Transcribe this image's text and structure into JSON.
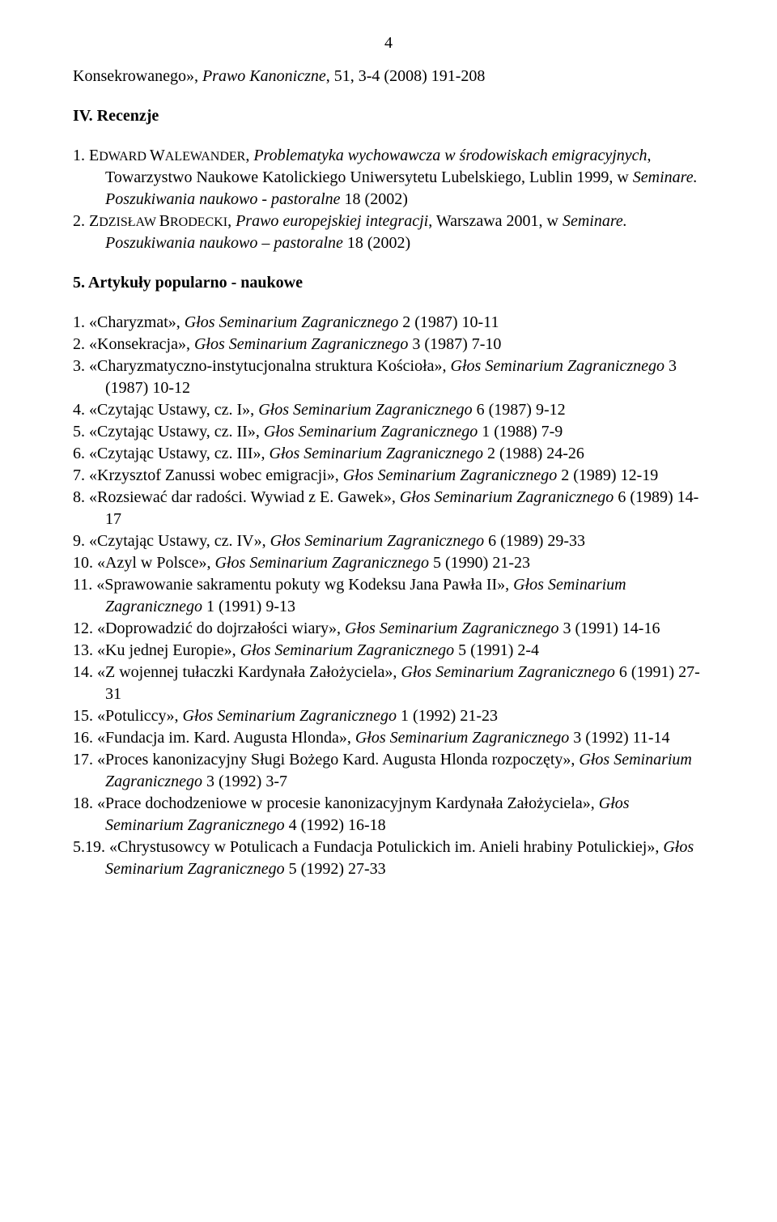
{
  "page_number": "4",
  "top_continuation": {
    "pre": "Konsekrowanego», ",
    "journal": "Prawo Kanoniczne",
    "post": ", 51, 3-4 (2008) 191-208"
  },
  "section_reviews": {
    "heading": "IV. Recenzje",
    "items": [
      {
        "num": "1. ",
        "author_a": "E",
        "author_b": "DWARD ",
        "author_c": "W",
        "author_d": "ALEWANDER",
        "mid1": ", ",
        "title1": "Problematyka wychowawcza w środowiskach emigracyjnych",
        "mid2": ", Towarzystwo Naukowe Katolickiego Uniwersytetu Lubelskiego, Lublin 1999, w ",
        "title2": "Seminare. Poszukiwania naukowo - pastoralne",
        "mid3": " 18 (2002)"
      },
      {
        "num": "2. ",
        "author_a": "Z",
        "author_b": "DZISŁAW ",
        "author_c": "B",
        "author_d": "RODECKI",
        "mid1": ", ",
        "title1": "Prawo europejskiej integracji",
        "mid2": ", Warszawa 2001, w ",
        "title2": "Seminare. Poszukiwania naukowo – pastoralne",
        "mid3": " 18 (2002)"
      }
    ]
  },
  "section_articles": {
    "heading": "5. Artykuły popularno - naukowe",
    "items": [
      {
        "num": "1. ",
        "pre": "«Charyzmat», ",
        "j": "Głos Seminarium Zagranicznego ",
        "post": " 2 (1987) 10-11"
      },
      {
        "num": "2. ",
        "pre": "«Konsekracja», ",
        "j": "Głos Seminarium Zagranicznego ",
        "post": " 3 (1987) 7-10"
      },
      {
        "num": "3. ",
        "pre": "«Charyzmatyczno-instytucjonalna struktura Kościoła», ",
        "j": "Głos Seminarium Zagranicznego ",
        "post": " 3 (1987) 10-12"
      },
      {
        "num": "4. ",
        "pre": "«Czytając Ustawy, cz. I», ",
        "j": "Głos Seminarium Zagranicznego ",
        "post": " 6 (1987) 9-12"
      },
      {
        "num": "5. ",
        "pre": "«Czytając Ustawy, cz. II», ",
        "j": "Głos Seminarium Zagranicznego",
        "post": " 1 (1988) 7-9"
      },
      {
        "num": "6. ",
        "pre": "«Czytając Ustawy, cz. III», ",
        "j": "Głos Seminarium Zagranicznego ",
        "post": " 2 (1988) 24-26"
      },
      {
        "num": "7. ",
        "pre": "«Krzysztof Zanussi wobec emigracji», ",
        "j": "Głos Seminarium Zagranicznego",
        "post": " 2 (1989) 12-19"
      },
      {
        "num": "8. ",
        "pre": "«Rozsiewać dar radości. Wywiad z E. Gawek», ",
        "j": "Głos Seminarium Zagranicznego ",
        "post": " 6 (1989) 14-17"
      },
      {
        "num": "9. ",
        "pre": "«Czytając Ustawy, cz. IV», ",
        "j": "Głos Seminarium Zagranicznego ",
        "post": " 6 (1989) 29-33"
      },
      {
        "num": "10. ",
        "pre": "«Azyl w Polsce», ",
        "j": "Głos Seminarium Zagranicznego",
        "post": " 5 (1990) 21-23"
      },
      {
        "num": "11. ",
        "pre": "«Sprawowanie sakramentu pokuty wg Kodeksu Jana Pawła II», ",
        "j": "Głos Seminarium Zagranicznego ",
        "post": " 1 (1991) 9-13"
      },
      {
        "num": "12. ",
        "pre": "«Doprowadzić do dojrzałości wiary», ",
        "j": "Głos Seminarium Zagranicznego",
        "post": " 3 (1991) 14-16"
      },
      {
        "num": "13. ",
        "pre": "«Ku jednej Europie», ",
        "j": "Głos Seminarium Zagranicznego ",
        "post": " 5 (1991) 2-4"
      },
      {
        "num": "14. ",
        "pre": "«Z wojennej tułaczki Kardynała Założyciela», ",
        "j": "Głos Seminarium Zagranicznego ",
        "post": " 6 (1991) 27-31"
      },
      {
        "num": "15. ",
        "pre": "«Potuliccy», ",
        "j": "Głos Seminarium Zagranicznego ",
        "post": " 1 (1992) 21-23"
      },
      {
        "num": "16. ",
        "pre": "«Fundacja im. Kard. Augusta Hlonda», ",
        "j": "Głos Seminarium Zagranicznego",
        "post": " 3 (1992) 11-14"
      },
      {
        "num": "17. ",
        "pre": "«Proces kanonizacyjny Sługi Bożego Kard. Augusta Hlonda rozpoczęty», ",
        "j": "Głos Seminarium Zagranicznego ",
        "post": " 3 (1992) 3-7"
      },
      {
        "num": "18. ",
        "pre": "«Prace dochodzeniowe w procesie kanonizacyjnym Kardynała Założyciela», ",
        "j": "Głos Seminarium Zagranicznego ",
        "post": " 4 (1992) 16-18"
      },
      {
        "num": "5.19. ",
        "pre": "«Chrystusowcy w Potulicach a Fundacja Potulickich im. Anieli hrabiny Potulickiej», ",
        "j": "Głos Seminarium Zagranicznego ",
        "post": " 5 (1992) 27-33"
      }
    ]
  }
}
